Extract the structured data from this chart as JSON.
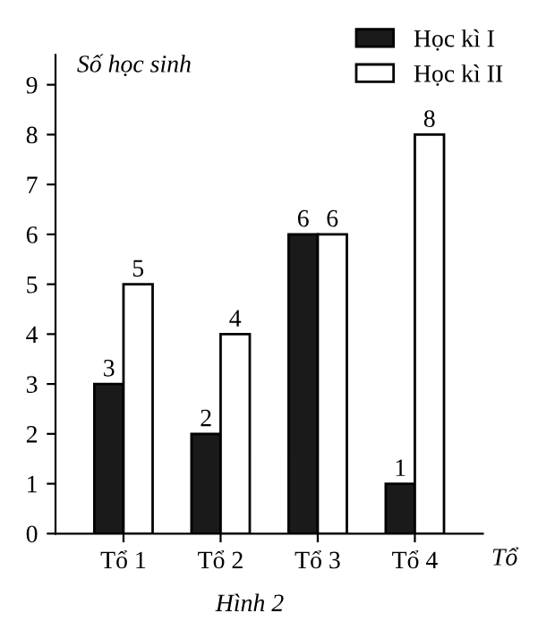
{
  "chart_data": {
    "type": "bar",
    "ylabel": "Số học sinh",
    "xlabel": "Tổ",
    "categories": [
      "Tổ 1",
      "Tổ 2",
      "Tổ 3",
      "Tổ 4"
    ],
    "series": [
      {
        "name": "Học kì I",
        "color": "#1a1a1a",
        "values": [
          3,
          2,
          6,
          1
        ]
      },
      {
        "name": "Học kì II",
        "color": "#ffffff",
        "values": [
          5,
          4,
          6,
          8
        ]
      }
    ],
    "ylim": [
      0,
      9.6
    ],
    "yticks": [
      0,
      1,
      2,
      3,
      4,
      5,
      6,
      7,
      8,
      9
    ],
    "data_labels": true,
    "grid": false,
    "legend": "top right",
    "annotations": [
      "Hình 2"
    ]
  }
}
